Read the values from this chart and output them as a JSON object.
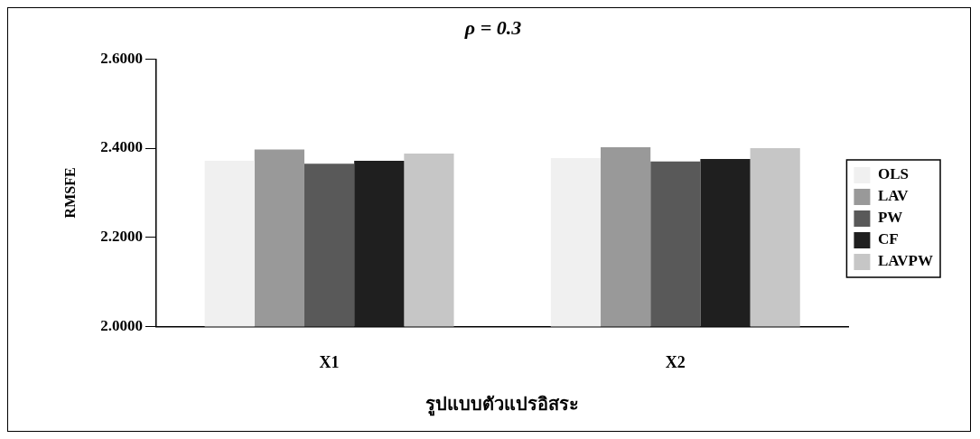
{
  "chart_data": {
    "type": "bar",
    "title": "ρ = 0.3",
    "xlabel": "รูปแบบตัวแปรอิสระ",
    "ylabel": "RMSFE",
    "categories": [
      "X1",
      "X2"
    ],
    "series": [
      {
        "name": "OLS",
        "color": "#f0f0f0",
        "values": [
          2.372,
          2.378
        ]
      },
      {
        "name": "LAV",
        "color": "#999999",
        "values": [
          2.397,
          2.402
        ]
      },
      {
        "name": "PW",
        "color": "#595959",
        "values": [
          2.365,
          2.37
        ]
      },
      {
        "name": "CF",
        "color": "#1f1f1f",
        "values": [
          2.372,
          2.376
        ]
      },
      {
        "name": "LAVPW",
        "color": "#c6c6c6",
        "values": [
          2.388,
          2.4
        ]
      }
    ],
    "ylim": [
      2,
      2.6
    ],
    "yticks": [
      {
        "value": 2,
        "label": "2.0000"
      },
      {
        "value": 2.2,
        "label": "2.2000"
      },
      {
        "value": 2.4,
        "label": "2.4000"
      },
      {
        "value": 2.6,
        "label": "2.6000"
      }
    ],
    "grid": false,
    "legend": "right"
  }
}
